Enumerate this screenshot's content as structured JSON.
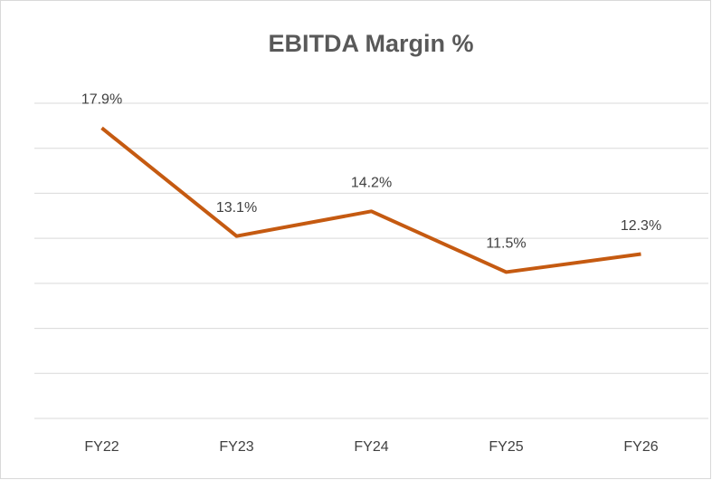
{
  "chart_data": {
    "type": "line",
    "title": "EBITDA Margin %",
    "categories": [
      "FY22",
      "FY23",
      "FY24",
      "FY25",
      "FY26"
    ],
    "series": [
      {
        "name": "EBITDA Margin %",
        "color": "#c55a11",
        "values": [
          17.9,
          13.1,
          14.2,
          11.5,
          12.3
        ],
        "value_labels": [
          "17.9%",
          "13.1%",
          "14.2%",
          "11.5%",
          "12.3%"
        ]
      }
    ],
    "ylim": [
      5,
      19
    ],
    "yticks": [
      5,
      7,
      9,
      11,
      13,
      15,
      17,
      19
    ],
    "grid": true
  }
}
